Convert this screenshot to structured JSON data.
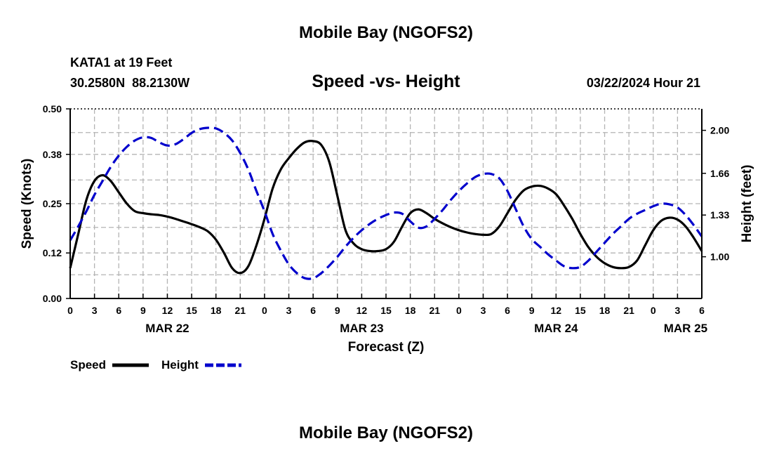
{
  "header": {
    "title": "Mobile Bay (NGOFS2)",
    "station": "KATA1 at 19 Feet",
    "coords": "30.2580N  88.2130W",
    "datetime": "03/22/2024 Hour 21",
    "footer_title": "Mobile Bay (NGOFS2)"
  },
  "legend": {
    "speed_label": "Speed",
    "height_label": "Height"
  },
  "colors": {
    "speed": "#000000",
    "height": "#0000cc",
    "grid": "#b4b4b4"
  },
  "chart_data": {
    "type": "line",
    "title": "Speed -vs- Height",
    "xlabel": "Forecast (Z)",
    "ylabel_left": "Speed (Knots)",
    "ylabel_right": "Height (feet)",
    "xlim": [
      0,
      78
    ],
    "x_ticks": [
      0,
      3,
      6,
      9,
      12,
      15,
      18,
      21,
      24,
      27,
      30,
      33,
      36,
      39,
      42,
      45,
      48,
      51,
      54,
      57,
      60,
      63,
      66,
      69,
      72,
      75,
      78
    ],
    "x_tick_labels": [
      "0",
      "3",
      "6",
      "9",
      "12",
      "15",
      "18",
      "21",
      "0",
      "3",
      "6",
      "9",
      "12",
      "15",
      "18",
      "21",
      "0",
      "3",
      "6",
      "9",
      "12",
      "15",
      "18",
      "21",
      "0",
      "3",
      "6"
    ],
    "date_labels": [
      {
        "x": 12,
        "label": "MAR 22"
      },
      {
        "x": 36,
        "label": "MAR 23"
      },
      {
        "x": 60,
        "label": "MAR 24"
      },
      {
        "x": 76,
        "label": "MAR 25"
      }
    ],
    "ylim_left": [
      0,
      0.5
    ],
    "y_ticks_left": [
      0.0,
      0.12,
      0.25,
      0.38,
      0.5
    ],
    "y_tick_labels_left": [
      "0.00",
      "0.12",
      "0.25",
      "0.38",
      "0.50"
    ],
    "ylim_right": [
      0.67,
      2.17
    ],
    "y_ticks_right": [
      1.0,
      1.33,
      1.66,
      2.0
    ],
    "y_tick_labels_right": [
      "1.00",
      "1.33",
      "1.66",
      "2.00"
    ],
    "grid": true,
    "legend_position": "bottom-left",
    "series": [
      {
        "name": "Speed",
        "axis": "left",
        "style": "solid",
        "x": [
          0,
          1,
          2,
          3,
          4,
          5,
          6,
          7,
          8,
          9,
          10,
          11,
          12,
          13,
          14,
          15,
          16,
          17,
          18,
          19,
          20,
          21,
          22,
          23,
          24,
          25,
          26,
          27,
          28,
          29,
          30,
          31,
          32,
          33,
          34,
          35,
          36,
          37,
          38,
          39,
          40,
          41,
          42,
          43,
          44,
          45,
          46,
          47,
          48,
          49,
          50,
          51,
          52,
          53,
          54,
          55,
          56,
          57,
          58,
          59,
          60,
          61,
          62,
          63,
          64,
          65,
          66,
          67,
          68,
          69,
          70,
          71,
          72,
          73,
          74,
          75,
          76,
          77,
          78
        ],
        "values": [
          0.08,
          0.17,
          0.26,
          0.31,
          0.325,
          0.31,
          0.28,
          0.25,
          0.23,
          0.225,
          0.222,
          0.22,
          0.216,
          0.21,
          0.203,
          0.196,
          0.188,
          0.177,
          0.155,
          0.12,
          0.08,
          0.067,
          0.085,
          0.14,
          0.21,
          0.29,
          0.34,
          0.37,
          0.395,
          0.412,
          0.415,
          0.405,
          0.36,
          0.27,
          0.18,
          0.145,
          0.13,
          0.125,
          0.125,
          0.13,
          0.15,
          0.19,
          0.225,
          0.235,
          0.225,
          0.21,
          0.198,
          0.188,
          0.18,
          0.174,
          0.17,
          0.168,
          0.17,
          0.19,
          0.225,
          0.26,
          0.285,
          0.295,
          0.297,
          0.29,
          0.275,
          0.245,
          0.21,
          0.17,
          0.135,
          0.11,
          0.093,
          0.083,
          0.08,
          0.083,
          0.1,
          0.14,
          0.18,
          0.205,
          0.213,
          0.208,
          0.19,
          0.16,
          0.125
        ]
      },
      {
        "name": "Height",
        "axis": "right",
        "style": "dashed",
        "x": [
          0,
          1,
          2,
          3,
          4,
          5,
          6,
          7,
          8,
          9,
          10,
          11,
          12,
          13,
          14,
          15,
          16,
          17,
          18,
          19,
          20,
          21,
          22,
          23,
          24,
          25,
          26,
          27,
          28,
          29,
          30,
          31,
          32,
          33,
          34,
          35,
          36,
          37,
          38,
          39,
          40,
          41,
          42,
          43,
          44,
          45,
          46,
          47,
          48,
          49,
          50,
          51,
          52,
          53,
          54,
          55,
          56,
          57,
          58,
          59,
          60,
          61,
          62,
          63,
          64,
          65,
          66,
          67,
          68,
          69,
          70,
          71,
          72,
          73,
          74,
          75,
          76,
          77,
          78
        ],
        "values": [
          1.13,
          1.24,
          1.36,
          1.49,
          1.6,
          1.71,
          1.8,
          1.87,
          1.92,
          1.945,
          1.94,
          1.905,
          1.88,
          1.89,
          1.93,
          1.98,
          2.01,
          2.02,
          2.015,
          1.98,
          1.92,
          1.82,
          1.69,
          1.52,
          1.36,
          1.18,
          1.05,
          0.94,
          0.87,
          0.83,
          0.83,
          0.87,
          0.93,
          1.0,
          1.08,
          1.15,
          1.21,
          1.26,
          1.3,
          1.33,
          1.35,
          1.34,
          1.28,
          1.23,
          1.24,
          1.3,
          1.37,
          1.45,
          1.52,
          1.58,
          1.63,
          1.655,
          1.655,
          1.62,
          1.52,
          1.38,
          1.24,
          1.14,
          1.08,
          1.02,
          0.97,
          0.925,
          0.91,
          0.92,
          0.97,
          1.04,
          1.11,
          1.18,
          1.24,
          1.3,
          1.34,
          1.37,
          1.4,
          1.42,
          1.415,
          1.39,
          1.33,
          1.25,
          1.16
        ]
      }
    ]
  }
}
